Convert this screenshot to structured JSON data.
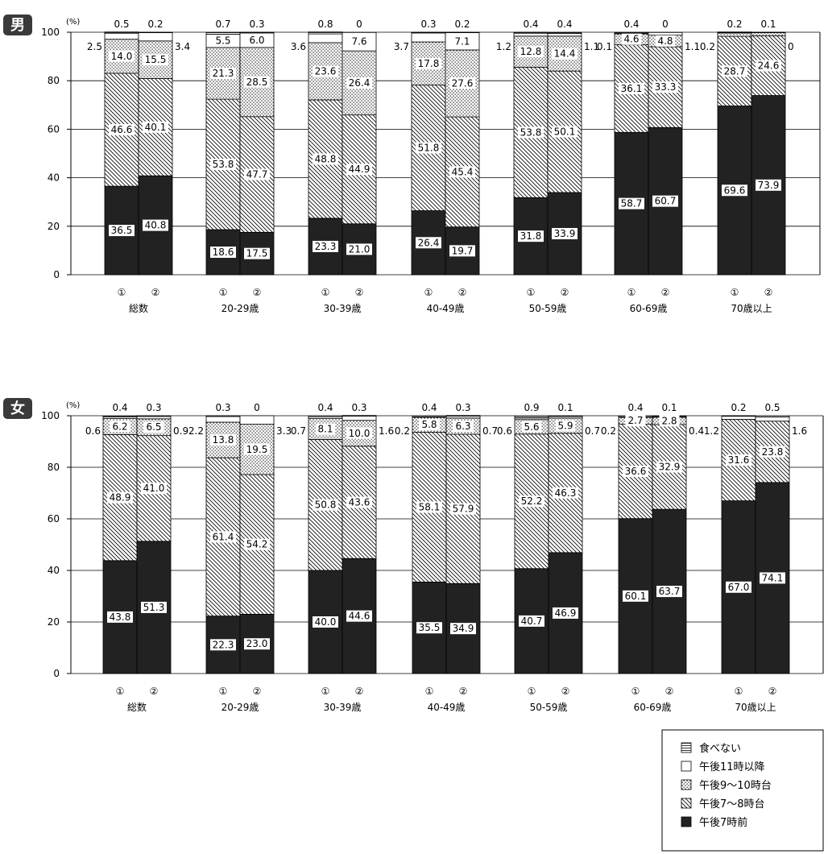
{
  "unit": "(%)",
  "legend": [
    {
      "key": "none",
      "label": "食べない",
      "fill": "url(#p-none)"
    },
    {
      "key": "after11",
      "label": "午後11時以降",
      "fill": "#ffffff"
    },
    {
      "key": "t9_10",
      "label": "午後9～10時台",
      "fill": "url(#p-dots)"
    },
    {
      "key": "t7_8",
      "label": "午後7～8時台",
      "fill": "url(#p-diag)"
    },
    {
      "key": "before7",
      "label": "午後7時前",
      "fill": "#222222"
    }
  ],
  "chart_data": [
    {
      "type": "bar",
      "stacked": true,
      "title": "男",
      "ylabel": "(%)",
      "ylim": [
        0,
        100
      ],
      "yticks": [
        0,
        20,
        40,
        60,
        80,
        100
      ],
      "grid": true,
      "groups": [
        "総数",
        "20-29歳",
        "30-39歳",
        "40-49歳",
        "50-59歳",
        "60-69歳",
        "70歳以上"
      ],
      "bar_labels": [
        "①",
        "②"
      ],
      "series_order": [
        "before7",
        "t7_8",
        "t9_10",
        "after11",
        "none"
      ],
      "bars": [
        {
          "group": 0,
          "bar": 0,
          "values": [
            36.5,
            46.6,
            14.0,
            2.5,
            0.5
          ]
        },
        {
          "group": 0,
          "bar": 1,
          "values": [
            40.8,
            40.1,
            15.5,
            3.4,
            0.2
          ]
        },
        {
          "group": 1,
          "bar": 0,
          "values": [
            18.6,
            53.8,
            21.3,
            5.5,
            0.7
          ]
        },
        {
          "group": 1,
          "bar": 1,
          "values": [
            17.5,
            47.7,
            28.5,
            6.0,
            0.3
          ]
        },
        {
          "group": 2,
          "bar": 0,
          "values": [
            23.3,
            48.8,
            23.6,
            3.6,
            0.8
          ]
        },
        {
          "group": 2,
          "bar": 1,
          "values": [
            21.0,
            44.9,
            26.4,
            7.6,
            0
          ]
        },
        {
          "group": 3,
          "bar": 0,
          "values": [
            26.4,
            51.8,
            17.8,
            3.7,
            0.3
          ]
        },
        {
          "group": 3,
          "bar": 1,
          "values": [
            19.7,
            45.4,
            27.6,
            7.1,
            0.2
          ]
        },
        {
          "group": 4,
          "bar": 0,
          "values": [
            31.8,
            53.8,
            12.8,
            1.2,
            0.4
          ]
        },
        {
          "group": 4,
          "bar": 1,
          "values": [
            33.9,
            50.1,
            14.4,
            1.1,
            0.4
          ]
        },
        {
          "group": 5,
          "bar": 0,
          "values": [
            58.7,
            36.1,
            4.6,
            0.1,
            0.4
          ]
        },
        {
          "group": 5,
          "bar": 1,
          "values": [
            60.7,
            33.3,
            4.8,
            1.1,
            0
          ]
        },
        {
          "group": 6,
          "bar": 0,
          "values": [
            69.6,
            28.7,
            1.4,
            0.2,
            0.2
          ]
        },
        {
          "group": 6,
          "bar": 1,
          "values": [
            73.9,
            24.6,
            1.4,
            0,
            0.1
          ]
        }
      ]
    },
    {
      "type": "bar",
      "stacked": true,
      "title": "女",
      "ylabel": "(%)",
      "ylim": [
        0,
        100
      ],
      "yticks": [
        0,
        20,
        40,
        60,
        80,
        100
      ],
      "grid": true,
      "groups": [
        "総数",
        "20-29歳",
        "30-39歳",
        "40-49歳",
        "50-59歳",
        "60-69歳",
        "70歳以上"
      ],
      "bar_labels": [
        "①",
        "②"
      ],
      "series_order": [
        "before7",
        "t7_8",
        "t9_10",
        "after11",
        "none"
      ],
      "bars": [
        {
          "group": 0,
          "bar": 0,
          "values": [
            43.8,
            48.9,
            6.2,
            0.6,
            0.4
          ]
        },
        {
          "group": 0,
          "bar": 1,
          "values": [
            51.3,
            41.0,
            6.5,
            0.9,
            0.3
          ]
        },
        {
          "group": 1,
          "bar": 0,
          "values": [
            22.3,
            61.4,
            13.8,
            2.2,
            0.3
          ]
        },
        {
          "group": 1,
          "bar": 1,
          "values": [
            23.0,
            54.2,
            19.5,
            3.3,
            0
          ]
        },
        {
          "group": 2,
          "bar": 0,
          "values": [
            40.0,
            50.8,
            8.1,
            0.7,
            0.4
          ]
        },
        {
          "group": 2,
          "bar": 1,
          "values": [
            44.6,
            43.6,
            10.0,
            1.6,
            0.3
          ]
        },
        {
          "group": 3,
          "bar": 0,
          "values": [
            35.5,
            58.1,
            5.8,
            0.2,
            0.4
          ]
        },
        {
          "group": 3,
          "bar": 1,
          "values": [
            34.9,
            57.9,
            6.3,
            0.7,
            0.3
          ]
        },
        {
          "group": 4,
          "bar": 0,
          "values": [
            40.7,
            52.2,
            5.6,
            0.6,
            0.9
          ]
        },
        {
          "group": 4,
          "bar": 1,
          "values": [
            46.9,
            46.3,
            5.9,
            0.7,
            0.1
          ]
        },
        {
          "group": 5,
          "bar": 0,
          "values": [
            60.1,
            36.6,
            2.7,
            0.2,
            0.4
          ]
        },
        {
          "group": 5,
          "bar": 1,
          "values": [
            63.7,
            32.9,
            2.8,
            0.4,
            0.1
          ]
        },
        {
          "group": 6,
          "bar": 0,
          "values": [
            67.0,
            31.6,
            0,
            1.2,
            0.2
          ]
        },
        {
          "group": 6,
          "bar": 1,
          "values": [
            74.1,
            23.8,
            0,
            1.6,
            0.5
          ]
        }
      ]
    }
  ]
}
